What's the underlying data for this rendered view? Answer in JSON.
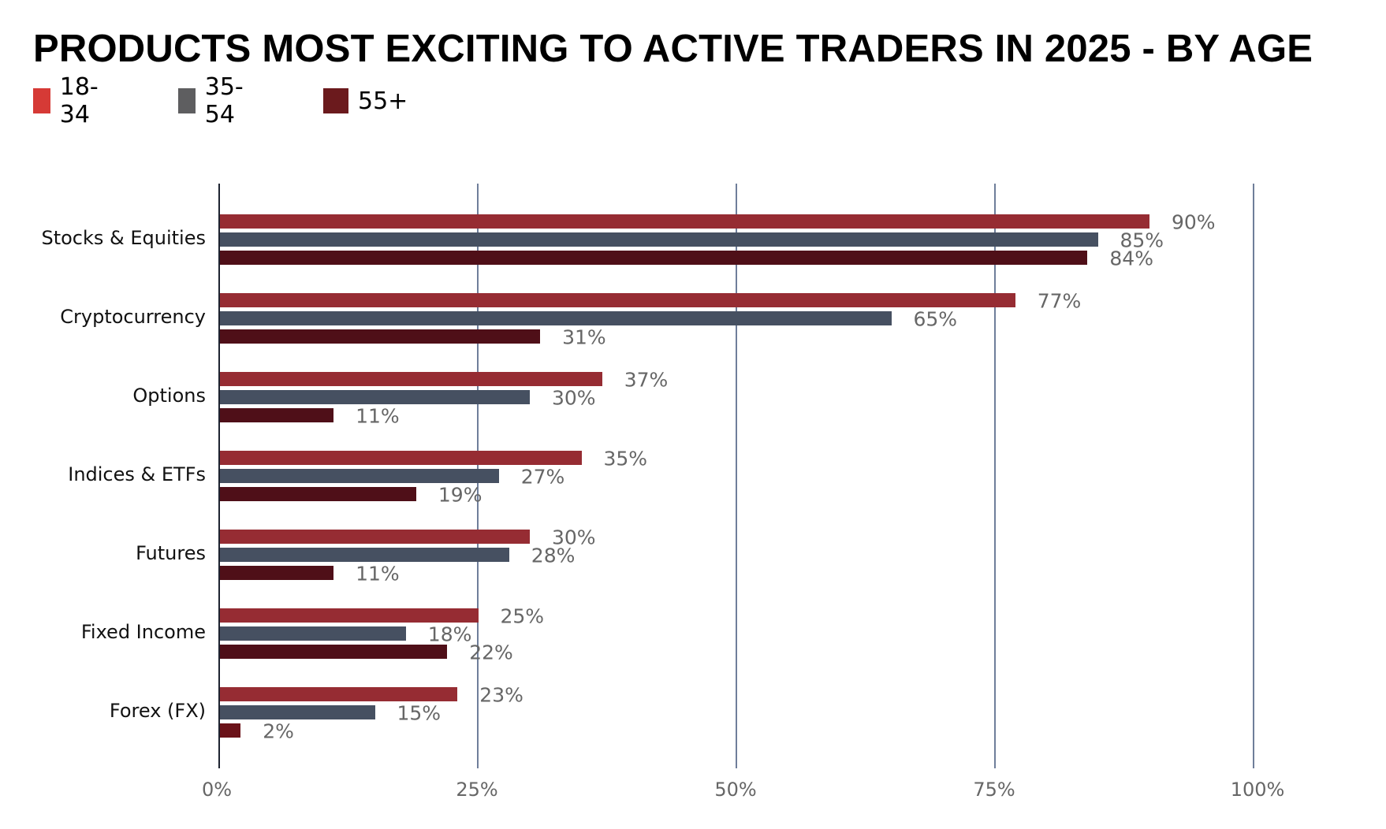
{
  "title": "PRODUCTS MOST EXCITING TO ACTIVE TRADERS IN 2025 - BY AGE",
  "legend": [
    {
      "label": "18-34",
      "color": "#d63a36"
    },
    {
      "label": "35-54",
      "color": "#5e5e60"
    },
    {
      "label": "55+",
      "color": "#6b1a1d"
    }
  ],
  "axis": {
    "ticks": [
      "0%",
      "25%",
      "50%",
      "75%",
      "100%"
    ]
  },
  "categories": [
    {
      "label": "Stocks & Equities",
      "values": [
        "90%",
        "85%",
        "84%"
      ]
    },
    {
      "label": "Cryptocurrency",
      "values": [
        "77%",
        "65%",
        "31%"
      ]
    },
    {
      "label": "Options",
      "values": [
        "37%",
        "30%",
        "11%"
      ]
    },
    {
      "label": "Indices & ETFs",
      "values": [
        "35%",
        "27%",
        "19%"
      ]
    },
    {
      "label": "Futures",
      "values": [
        "30%",
        "28%",
        "11%"
      ]
    },
    {
      "label": "Fixed Income",
      "values": [
        "25%",
        "18%",
        "22%"
      ]
    },
    {
      "label": "Forex (FX)",
      "values": [
        "23%",
        "15%",
        "2%"
      ]
    }
  ],
  "chart_data": {
    "type": "bar",
    "orientation": "horizontal",
    "title": "PRODUCTS MOST EXCITING TO ACTIVE TRADERS IN 2025 - BY AGE",
    "categories": [
      "Stocks & Equities",
      "Cryptocurrency",
      "Options",
      "Indices & ETFs",
      "Futures",
      "Fixed Income",
      "Forex (FX)"
    ],
    "series": [
      {
        "name": "18-34",
        "values": [
          90,
          77,
          37,
          35,
          30,
          25,
          23
        ],
        "color": "#962c33"
      },
      {
        "name": "35-54",
        "values": [
          85,
          65,
          30,
          27,
          28,
          18,
          15
        ],
        "color": "#465061"
      },
      {
        "name": "55+",
        "values": [
          84,
          31,
          11,
          19,
          11,
          22,
          2
        ],
        "color": "#4f0f18"
      }
    ],
    "xlabel": "",
    "ylabel": "",
    "xlim": [
      0,
      100
    ],
    "xticks": [
      "0%",
      "25%",
      "50%",
      "75%",
      "100%"
    ],
    "grid": "vertical",
    "legend_position": "top-left",
    "data_labels": true
  }
}
